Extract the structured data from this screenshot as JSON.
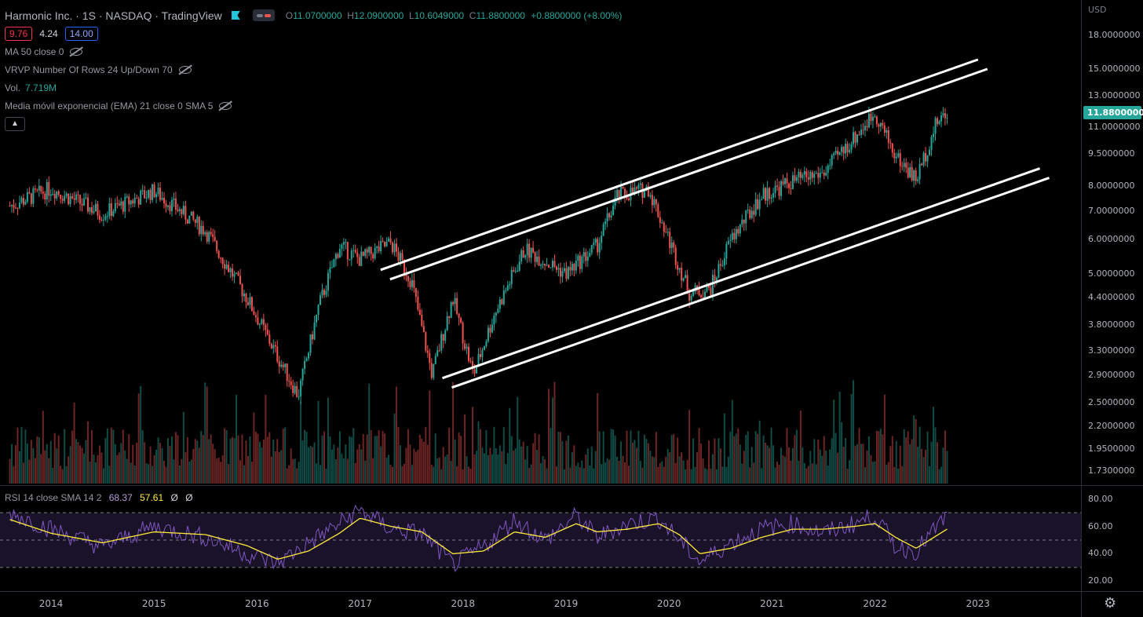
{
  "header": {
    "symbol_title": "Harmonic Inc. · 1S · NASDAQ · TradingView",
    "ohlc": {
      "o_label": "O",
      "o": "11.0700000",
      "h_label": "H",
      "h": "12.0900000",
      "l_label": "L",
      "l": "10.6049000",
      "c_label": "C",
      "c": "11.8800000",
      "change": "+0.8800000 (+8.00%)"
    }
  },
  "trade": {
    "bid": "9.76",
    "spread": "4.24",
    "ask": "14.00"
  },
  "indicators": [
    {
      "label": "MA 50 close 0",
      "value": ""
    },
    {
      "label": "VRVP Number Of Rows 24 Up/Down 70",
      "value": ""
    },
    {
      "label": "Vol.",
      "value": "7.719M"
    },
    {
      "label": "Media móvil exponencial (EMA) 21 close 0 SMA 5",
      "value": ""
    }
  ],
  "collapse_icon": "chevron-up-icon",
  "price_scale": {
    "currency": "USD",
    "ticks": [
      "18.0000000",
      "15.0000000",
      "13.0000000",
      "11.0000000",
      "9.5000000",
      "8.0000000",
      "7.0000000",
      "6.0000000",
      "5.0000000",
      "4.4000000",
      "3.8000000",
      "3.3000000",
      "2.9000000",
      "2.5000000",
      "2.2000000",
      "1.9500000",
      "1.7300000"
    ],
    "tick_values": [
      18,
      15,
      13,
      11,
      9.5,
      8,
      7,
      6,
      5,
      4.4,
      3.8,
      3.3,
      2.9,
      2.5,
      2.2,
      1.95,
      1.73
    ],
    "last_price": "11.8800000",
    "last_price_value": 11.88
  },
  "rsi": {
    "label": "RSI 14 close SMA 14 2",
    "rsi_value": "68.37",
    "sma_value": "57.61",
    "extra1": "Ø",
    "extra2": "Ø",
    "ticks": [
      "80.00",
      "60.00",
      "40.00",
      "20.00"
    ],
    "tick_values": [
      80,
      60,
      40,
      20
    ],
    "bands": {
      "upper": 70,
      "middle": 50,
      "lower": 30
    }
  },
  "time_axis": {
    "years": [
      "2014",
      "2015",
      "2016",
      "2017",
      "2018",
      "2019",
      "2020",
      "2021",
      "2022",
      "2023"
    ]
  },
  "colors": {
    "up": "#26a69a",
    "down": "#ef5350",
    "rsi_line": "#7e57c2",
    "rsi_sma": "#ffeb3b",
    "channel": "#ffffff",
    "last_price_bg": "#26a69a"
  },
  "chart_data": {
    "type": "candlestick",
    "scale": "log",
    "ylim": [
      1.7,
      19
    ],
    "series": [
      {
        "name": "price",
        "x": [
          2013.6,
          2014.0,
          2014.5,
          2015.0,
          2015.5,
          2015.9,
          2016.2,
          2016.4,
          2016.6,
          2016.8,
          2017.0,
          2017.3,
          2017.5,
          2017.7,
          2017.9,
          2018.1,
          2018.3,
          2018.6,
          2019.0,
          2019.3,
          2019.5,
          2019.8,
          2020.0,
          2020.2,
          2020.4,
          2020.6,
          2020.9,
          2021.2,
          2021.5,
          2021.8,
          2022.0,
          2022.2,
          2022.4,
          2022.6,
          2022.7
        ],
        "values": [
          7.2,
          7.9,
          6.9,
          7.8,
          6.3,
          4.4,
          3.2,
          2.6,
          4.2,
          5.8,
          5.4,
          5.9,
          4.8,
          2.9,
          4.4,
          2.9,
          4.0,
          5.7,
          5.0,
          5.8,
          7.6,
          7.9,
          6.0,
          4.5,
          4.6,
          6.0,
          7.6,
          8.2,
          8.6,
          10.4,
          11.9,
          9.4,
          8.3,
          11.3,
          11.88
        ]
      }
    ],
    "volume_scale_note": "",
    "channel_upper": {
      "p1": [
        "2017.2",
        5.1
      ],
      "p2": [
        "2023.0",
        15.8
      ]
    },
    "channel_lower": {
      "p1": [
        "2017.8",
        2.85
      ],
      "p2": [
        "2023.6",
        8.8
      ]
    },
    "rsi_series": {
      "x": [
        2013.6,
        2014.0,
        2014.5,
        2015.0,
        2015.5,
        2015.9,
        2016.2,
        2016.5,
        2016.8,
        2017.0,
        2017.3,
        2017.6,
        2017.9,
        2018.2,
        2018.5,
        2018.8,
        2019.1,
        2019.3,
        2019.6,
        2019.9,
        2020.1,
        2020.3,
        2020.6,
        2020.9,
        2021.2,
        2021.5,
        2021.8,
        2022.0,
        2022.2,
        2022.4,
        2022.7
      ],
      "rsi": [
        70,
        58,
        45,
        60,
        52,
        40,
        33,
        48,
        62,
        72,
        58,
        55,
        32,
        45,
        65,
        50,
        68,
        52,
        62,
        66,
        50,
        34,
        48,
        58,
        62,
        55,
        62,
        68,
        45,
        42,
        68
      ],
      "sma": [
        65,
        55,
        48,
        56,
        54,
        46,
        36,
        42,
        55,
        66,
        60,
        56,
        40,
        42,
        56,
        52,
        62,
        56,
        58,
        62,
        54,
        40,
        44,
        52,
        58,
        58,
        60,
        62,
        52,
        44,
        58
      ]
    }
  }
}
